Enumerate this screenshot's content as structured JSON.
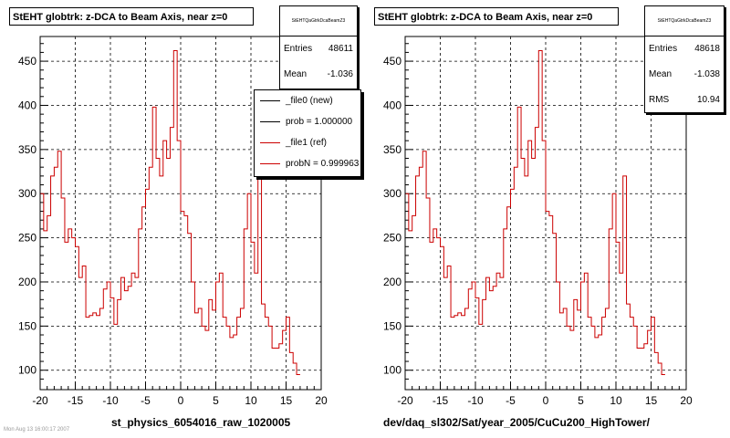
{
  "footer_text": "Mon Aug 13 16:00:17 2007",
  "chart_data": [
    {
      "type": "histogram",
      "title": "StEHT globtrk: z-DCA to Beam Axis, near z=0",
      "xlabel": "st_physics_6054016_raw_1020005",
      "ylabel": "",
      "xlim": [
        -20,
        20
      ],
      "ylim": [
        78,
        478
      ],
      "x_ticks": [
        "-20",
        "-15",
        "-10",
        "-5",
        "0",
        "5",
        "10",
        "15",
        "20"
      ],
      "y_ticks": [
        "100",
        "150",
        "200",
        "250",
        "300",
        "350",
        "400",
        "450"
      ],
      "grid": true,
      "stats": {
        "header": "StEHTQaGtrkDcaBeamZ3",
        "rows": [
          {
            "label": "Entries",
            "value": "48611"
          },
          {
            "label": "Mean",
            "value": "-1.036"
          }
        ]
      },
      "legend": {
        "position": "right",
        "entries": [
          {
            "label": "_file0 (new)",
            "color": "#000000"
          },
          {
            "label": "prob = 1.000000",
            "color": "#000000"
          },
          {
            "label": "_file1 (ref)",
            "color": "#cc0000"
          },
          {
            "label": "probN = 0.999963",
            "color": "#cc0000"
          }
        ]
      },
      "series": [
        {
          "color": "#cc0000",
          "bin_edges_start": -20,
          "bin_width": 0.5,
          "values": [
            300,
            258,
            275,
            320,
            330,
            348,
            295,
            245,
            260,
            250,
            240,
            205,
            218,
            160,
            162,
            165,
            162,
            170,
            192,
            200,
            182,
            152,
            180,
            205,
            190,
            195,
            210,
            205,
            260,
            285,
            305,
            330,
            398,
            340,
            320,
            360,
            340,
            375,
            462,
            360,
            280,
            275,
            255,
            200,
            165,
            170,
            150,
            145,
            180,
            168,
            200,
            210,
            160,
            150,
            137,
            140,
            160,
            170,
            260,
            300,
            245,
            210,
            320,
            175,
            160,
            150,
            125,
            125,
            130,
            145,
            160,
            120,
            108,
            95
          ]
        }
      ]
    },
    {
      "type": "histogram",
      "title": "StEHT globtrk: z-DCA to Beam Axis, near z=0",
      "xlabel": "dev/daq_sl302/Sat/year_2005/CuCu200_HighTower/",
      "ylabel": "",
      "xlim": [
        -20,
        20
      ],
      "ylim": [
        78,
        478
      ],
      "x_ticks": [
        "-20",
        "-15",
        "-10",
        "-5",
        "0",
        "5",
        "10",
        "15",
        "20"
      ],
      "y_ticks": [
        "100",
        "150",
        "200",
        "250",
        "300",
        "350",
        "400",
        "450"
      ],
      "grid": true,
      "stats": {
        "header": "StEHTQaGtrkDcaBeamZ3",
        "rows": [
          {
            "label": "Entries",
            "value": "48618"
          },
          {
            "label": "Mean",
            "value": "-1.038"
          },
          {
            "label": "RMS",
            "value": "10.94"
          }
        ]
      },
      "series": [
        {
          "color": "#cc0000",
          "bin_edges_start": -20,
          "bin_width": 0.5,
          "values": [
            300,
            258,
            275,
            320,
            330,
            348,
            295,
            245,
            260,
            250,
            240,
            205,
            218,
            160,
            162,
            165,
            162,
            170,
            192,
            200,
            182,
            152,
            180,
            205,
            190,
            195,
            210,
            205,
            260,
            285,
            305,
            330,
            398,
            340,
            320,
            360,
            340,
            375,
            462,
            360,
            280,
            275,
            255,
            200,
            165,
            170,
            150,
            145,
            180,
            168,
            200,
            210,
            160,
            150,
            137,
            140,
            160,
            170,
            260,
            300,
            245,
            210,
            320,
            175,
            160,
            150,
            125,
            125,
            130,
            145,
            160,
            120,
            108,
            95
          ]
        }
      ]
    }
  ]
}
